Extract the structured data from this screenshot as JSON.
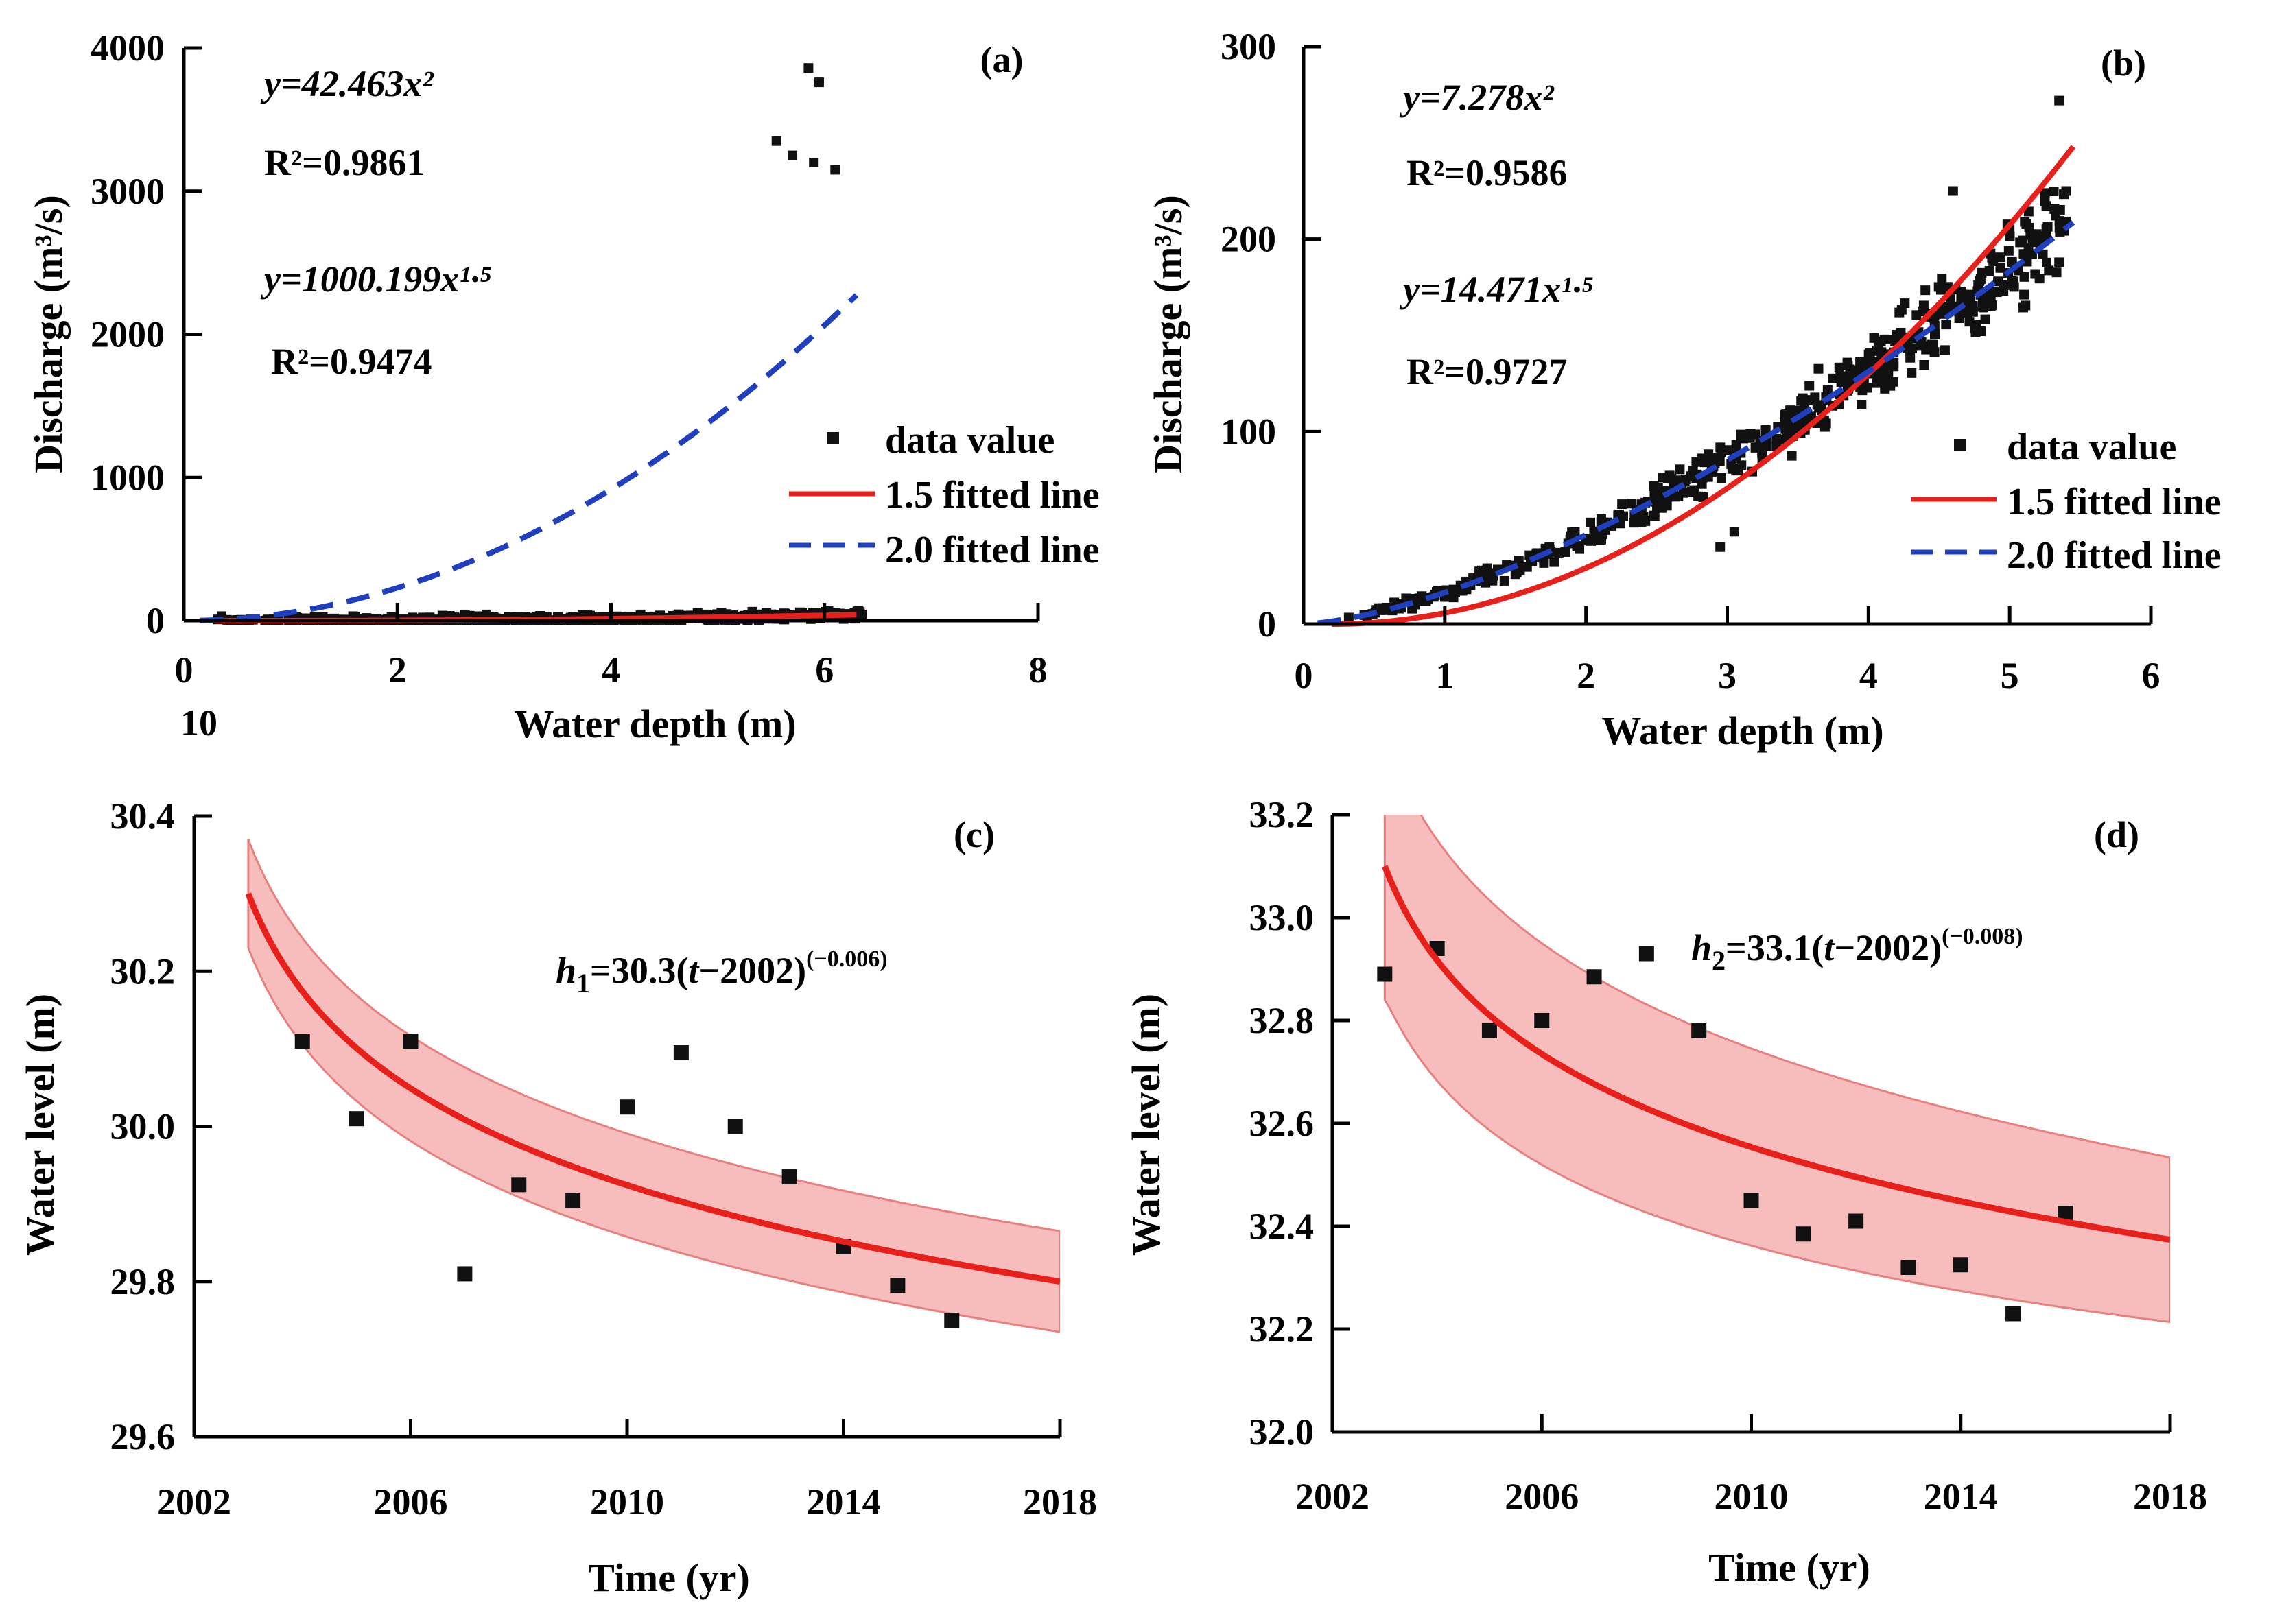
{
  "chart_data": [
    {
      "panel": "a",
      "type": "scatter",
      "panel_label": "(a)",
      "xlabel": "Water depth (m)",
      "ylabel": "Discharge (m³/s)",
      "xlim": [
        0,
        8
      ],
      "ylim": [
        0,
        4000
      ],
      "x_ticks": [
        "0",
        "2",
        "4",
        "6",
        "8"
      ],
      "extra_tick_label": "10",
      "y_ticks": [
        "0",
        "1000",
        "2000",
        "3000",
        "4000"
      ],
      "annotations": [
        {
          "text": "y=42.463x²"
        },
        {
          "text": "R²=0.9861"
        },
        {
          "text": "y=1000.199x¹·⁵"
        },
        {
          "text": "R²=0.9474"
        }
      ],
      "legend": [
        "data value",
        "1.5 fitted line",
        "2.0 fitted line"
      ],
      "legend_position": "bottom-right",
      "fits": [
        {
          "name": "1.5 fitted line",
          "color": "#e8201c",
          "style": "solid",
          "equation": "Q = 0.7439·(h-0.3)^2.25",
          "x_range": [
            0.3,
            6.3
          ]
        },
        {
          "name": "2.0 fitted line",
          "color": "#1f3fbf",
          "style": "dashed",
          "equation": "Q = 57.3·h^2",
          "x_range": [
            0.15,
            6.3
          ]
        }
      ],
      "points_model": {
        "n": 560,
        "x_range": [
          0.2,
          6.35
        ],
        "curve": "0.7439*(h-0.3)^2.25",
        "noise_frac": 0.09
      },
      "outliers": [
        [
          5.85,
          3860
        ],
        [
          5.95,
          3760
        ],
        [
          6.1,
          3150
        ],
        [
          5.55,
          3350
        ],
        [
          5.7,
          3250
        ],
        [
          5.9,
          3200
        ]
      ]
    },
    {
      "panel": "b",
      "type": "scatter",
      "panel_label": "(b)",
      "xlabel": "Water depth (m)",
      "ylabel": "Discharge (m³/s)",
      "xlim": [
        0,
        6
      ],
      "ylim": [
        0,
        300
      ],
      "x_ticks": [
        "0",
        "1",
        "2",
        "3",
        "4",
        "5",
        "6"
      ],
      "y_ticks": [
        "0",
        "100",
        "200",
        "300"
      ],
      "annotations": [
        {
          "text": "y=7.278x²"
        },
        {
          "text": "R²=0.9586"
        },
        {
          "text": "y=14.471x¹·⁵"
        },
        {
          "text": "R²=0.9727"
        }
      ],
      "legend": [
        "data value",
        "1.5 fitted line",
        "2.0 fitted line"
      ],
      "legend_position": "bottom-right",
      "fits": [
        {
          "name": "1.5 fitted line",
          "color": "#e8201c",
          "style": "solid",
          "equation": "Q = 9.0·(h-0.2)^2",
          "x_range": [
            0.2,
            5.45
          ]
        },
        {
          "name": "2.0 fitted line",
          "color": "#1f3fbf",
          "style": "dashed",
          "equation": "Q = 16.4·h^1.5",
          "x_range": [
            0.1,
            5.45
          ]
        }
      ],
      "points_model": {
        "n": 520,
        "x_range": [
          0.3,
          5.4
        ],
        "curve": "16.4*h^1.5",
        "noise_frac": 0.11
      },
      "outliers": [
        [
          5.35,
          272
        ],
        [
          5.4,
          225
        ],
        [
          4.6,
          225
        ],
        [
          5.0,
          205
        ],
        [
          2.95,
          40
        ],
        [
          3.05,
          48
        ]
      ]
    },
    {
      "panel": "c",
      "type": "scatter",
      "panel_label": "(c)",
      "xlabel": "Time (yr)",
      "ylabel": "Water level (m)",
      "xlim": [
        2002,
        2018
      ],
      "ylim": [
        29.6,
        30.4
      ],
      "x_ticks": [
        "2002",
        "2006",
        "2010",
        "2014",
        "2018"
      ],
      "y_ticks": [
        "29.6",
        "29.8",
        "30.0",
        "30.2",
        "30.4"
      ],
      "equation_parts": {
        "var": "h",
        "sub": "1",
        "body": "=30.3(",
        "t": "t",
        "tail": "−2002)",
        "exponent": "(−0.006)"
      },
      "fit": {
        "a": 30.3,
        "b": -0.006,
        "t0": 2002,
        "x_range": [
          2003,
          2018
        ],
        "band_start": 0.07,
        "band_end": 0.065
      },
      "points": [
        [
          2004,
          30.11
        ],
        [
          2005,
          30.01
        ],
        [
          2006,
          30.11
        ],
        [
          2007,
          29.81
        ],
        [
          2008,
          29.925
        ],
        [
          2009,
          29.905
        ],
        [
          2010,
          30.025
        ],
        [
          2011,
          30.095
        ],
        [
          2012,
          30.0
        ],
        [
          2013,
          29.935
        ],
        [
          2014,
          29.845
        ],
        [
          2015,
          29.795
        ],
        [
          2016,
          29.75
        ]
      ]
    },
    {
      "panel": "d",
      "type": "scatter",
      "panel_label": "(d)",
      "xlabel": "Time (yr)",
      "ylabel": "Water level (m)",
      "xlim": [
        2002,
        2018
      ],
      "ylim": [
        32.0,
        33.2
      ],
      "x_ticks": [
        "2002",
        "2006",
        "2010",
        "2014",
        "2018"
      ],
      "y_ticks": [
        "32.0",
        "32.2",
        "32.4",
        "32.6",
        "32.8",
        "33.0",
        "33.2"
      ],
      "equation_parts": {
        "var": "h",
        "sub": "2",
        "body": "=33.1(",
        "t": "t",
        "tail": "−2002)",
        "exponent": "(−0.008)"
      },
      "fit": {
        "a": 33.1,
        "b": -0.008,
        "t0": 2002,
        "x_range": [
          2003,
          2018
        ],
        "band_start": 0.26,
        "band_end": 0.16
      },
      "points": [
        [
          2003,
          32.89
        ],
        [
          2004,
          32.94
        ],
        [
          2005,
          32.78
        ],
        [
          2006,
          32.8
        ],
        [
          2007,
          32.885
        ],
        [
          2008,
          32.93
        ],
        [
          2009,
          32.78
        ],
        [
          2010,
          32.45
        ],
        [
          2011,
          32.385
        ],
        [
          2012,
          32.41
        ],
        [
          2013,
          32.32
        ],
        [
          2014,
          32.325
        ],
        [
          2015,
          32.23
        ],
        [
          2016,
          32.425
        ]
      ]
    }
  ],
  "colors": {
    "fit_red": "#e8201c",
    "fit_blue": "#1f3fbf",
    "band_fill": "#f4a6a6",
    "band_edge": "#e88080",
    "point": "#111111"
  }
}
